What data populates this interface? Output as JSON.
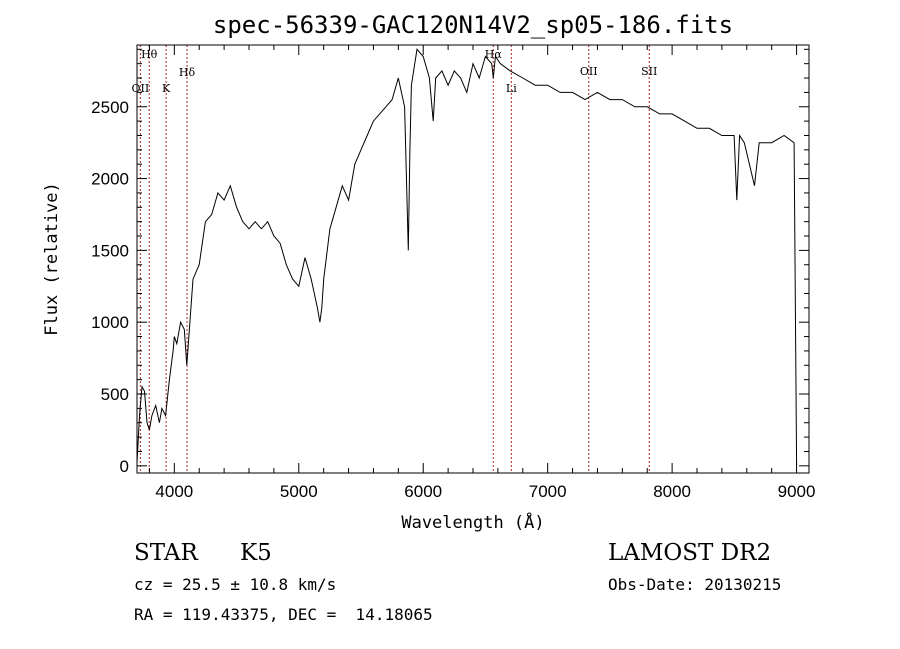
{
  "chart_data": {
    "type": "line",
    "title": "spec-56339-GAC120N14V2_sp05-186.fits",
    "xlabel": "Wavelength (Å)",
    "ylabel": "Flux (relative)",
    "xlim": [
      3700,
      9100
    ],
    "ylim": [
      -50,
      2930
    ],
    "xticks": [
      4000,
      5000,
      6000,
      7000,
      8000,
      9000
    ],
    "yticks": [
      0,
      500,
      1000,
      1500,
      2000,
      2500
    ],
    "grid": false,
    "line_color": "#000000",
    "marker_color": "#b22222",
    "series": [
      {
        "x": [
          3700,
          3720,
          3740,
          3760,
          3780,
          3800,
          3820,
          3850,
          3880,
          3900,
          3930,
          3960,
          3990,
          4000,
          4020,
          4050,
          4080,
          4100,
          4150,
          4200,
          4250,
          4300,
          4350,
          4400,
          4450,
          4500,
          4550,
          4600,
          4650,
          4700,
          4750,
          4800,
          4850,
          4900,
          4950,
          5000,
          5050,
          5100,
          5150,
          5170,
          5185,
          5200,
          5250,
          5300,
          5350,
          5400,
          5450,
          5500,
          5550,
          5600,
          5650,
          5700,
          5750,
          5800,
          5850,
          5880,
          5893,
          5905,
          5950,
          6000,
          6050,
          6080,
          6100,
          6150,
          6200,
          6250,
          6300,
          6350,
          6400,
          6450,
          6500,
          6550,
          6563,
          6580,
          6620,
          6700,
          6800,
          6900,
          7000,
          7100,
          7200,
          7300,
          7400,
          7500,
          7600,
          7700,
          7800,
          7900,
          8000,
          8100,
          8200,
          8300,
          8400,
          8498,
          8520,
          8542,
          8580,
          8662,
          8700,
          8800,
          8900,
          8980,
          9000
        ],
        "values": [
          20,
          350,
          550,
          520,
          300,
          250,
          350,
          420,
          300,
          400,
          350,
          600,
          800,
          900,
          850,
          1000,
          950,
          700,
          1300,
          1400,
          1700,
          1750,
          1900,
          1850,
          1950,
          1800,
          1700,
          1650,
          1700,
          1650,
          1700,
          1600,
          1550,
          1400,
          1300,
          1250,
          1450,
          1300,
          1100,
          1000,
          1100,
          1300,
          1650,
          1800,
          1950,
          1850,
          2100,
          2200,
          2300,
          2400,
          2450,
          2500,
          2550,
          2700,
          2500,
          1500,
          2200,
          2650,
          2900,
          2850,
          2700,
          2400,
          2700,
          2750,
          2650,
          2750,
          2700,
          2600,
          2800,
          2700,
          2850,
          2800,
          2700,
          2850,
          2800,
          2750,
          2700,
          2650,
          2650,
          2600,
          2600,
          2550,
          2600,
          2550,
          2550,
          2500,
          2500,
          2450,
          2450,
          2400,
          2350,
          2350,
          2300,
          2300,
          1850,
          2300,
          2250,
          1950,
          2250,
          2250,
          2300,
          2250,
          0
        ]
      }
    ],
    "lines": [
      {
        "label": "Hθ",
        "x": 3798
      },
      {
        "label": "OII",
        "x": 3727
      },
      {
        "label": "K",
        "x": 3934
      },
      {
        "label": "Hδ",
        "x": 4102
      },
      {
        "label": "Hα",
        "x": 6563
      },
      {
        "label": "Li",
        "x": 6708
      },
      {
        "label": "OII",
        "x": 7330
      },
      {
        "label": "SII",
        "x": 7816
      }
    ]
  },
  "info": {
    "class": "STAR",
    "subclass": "K5",
    "survey": "LAMOST DR2",
    "cz": "cz = 25.5 ± 10.8 km/s",
    "obs_date": "Obs-Date: 20130215",
    "coords": "RA = 119.43375, DEC =  14.18065"
  }
}
